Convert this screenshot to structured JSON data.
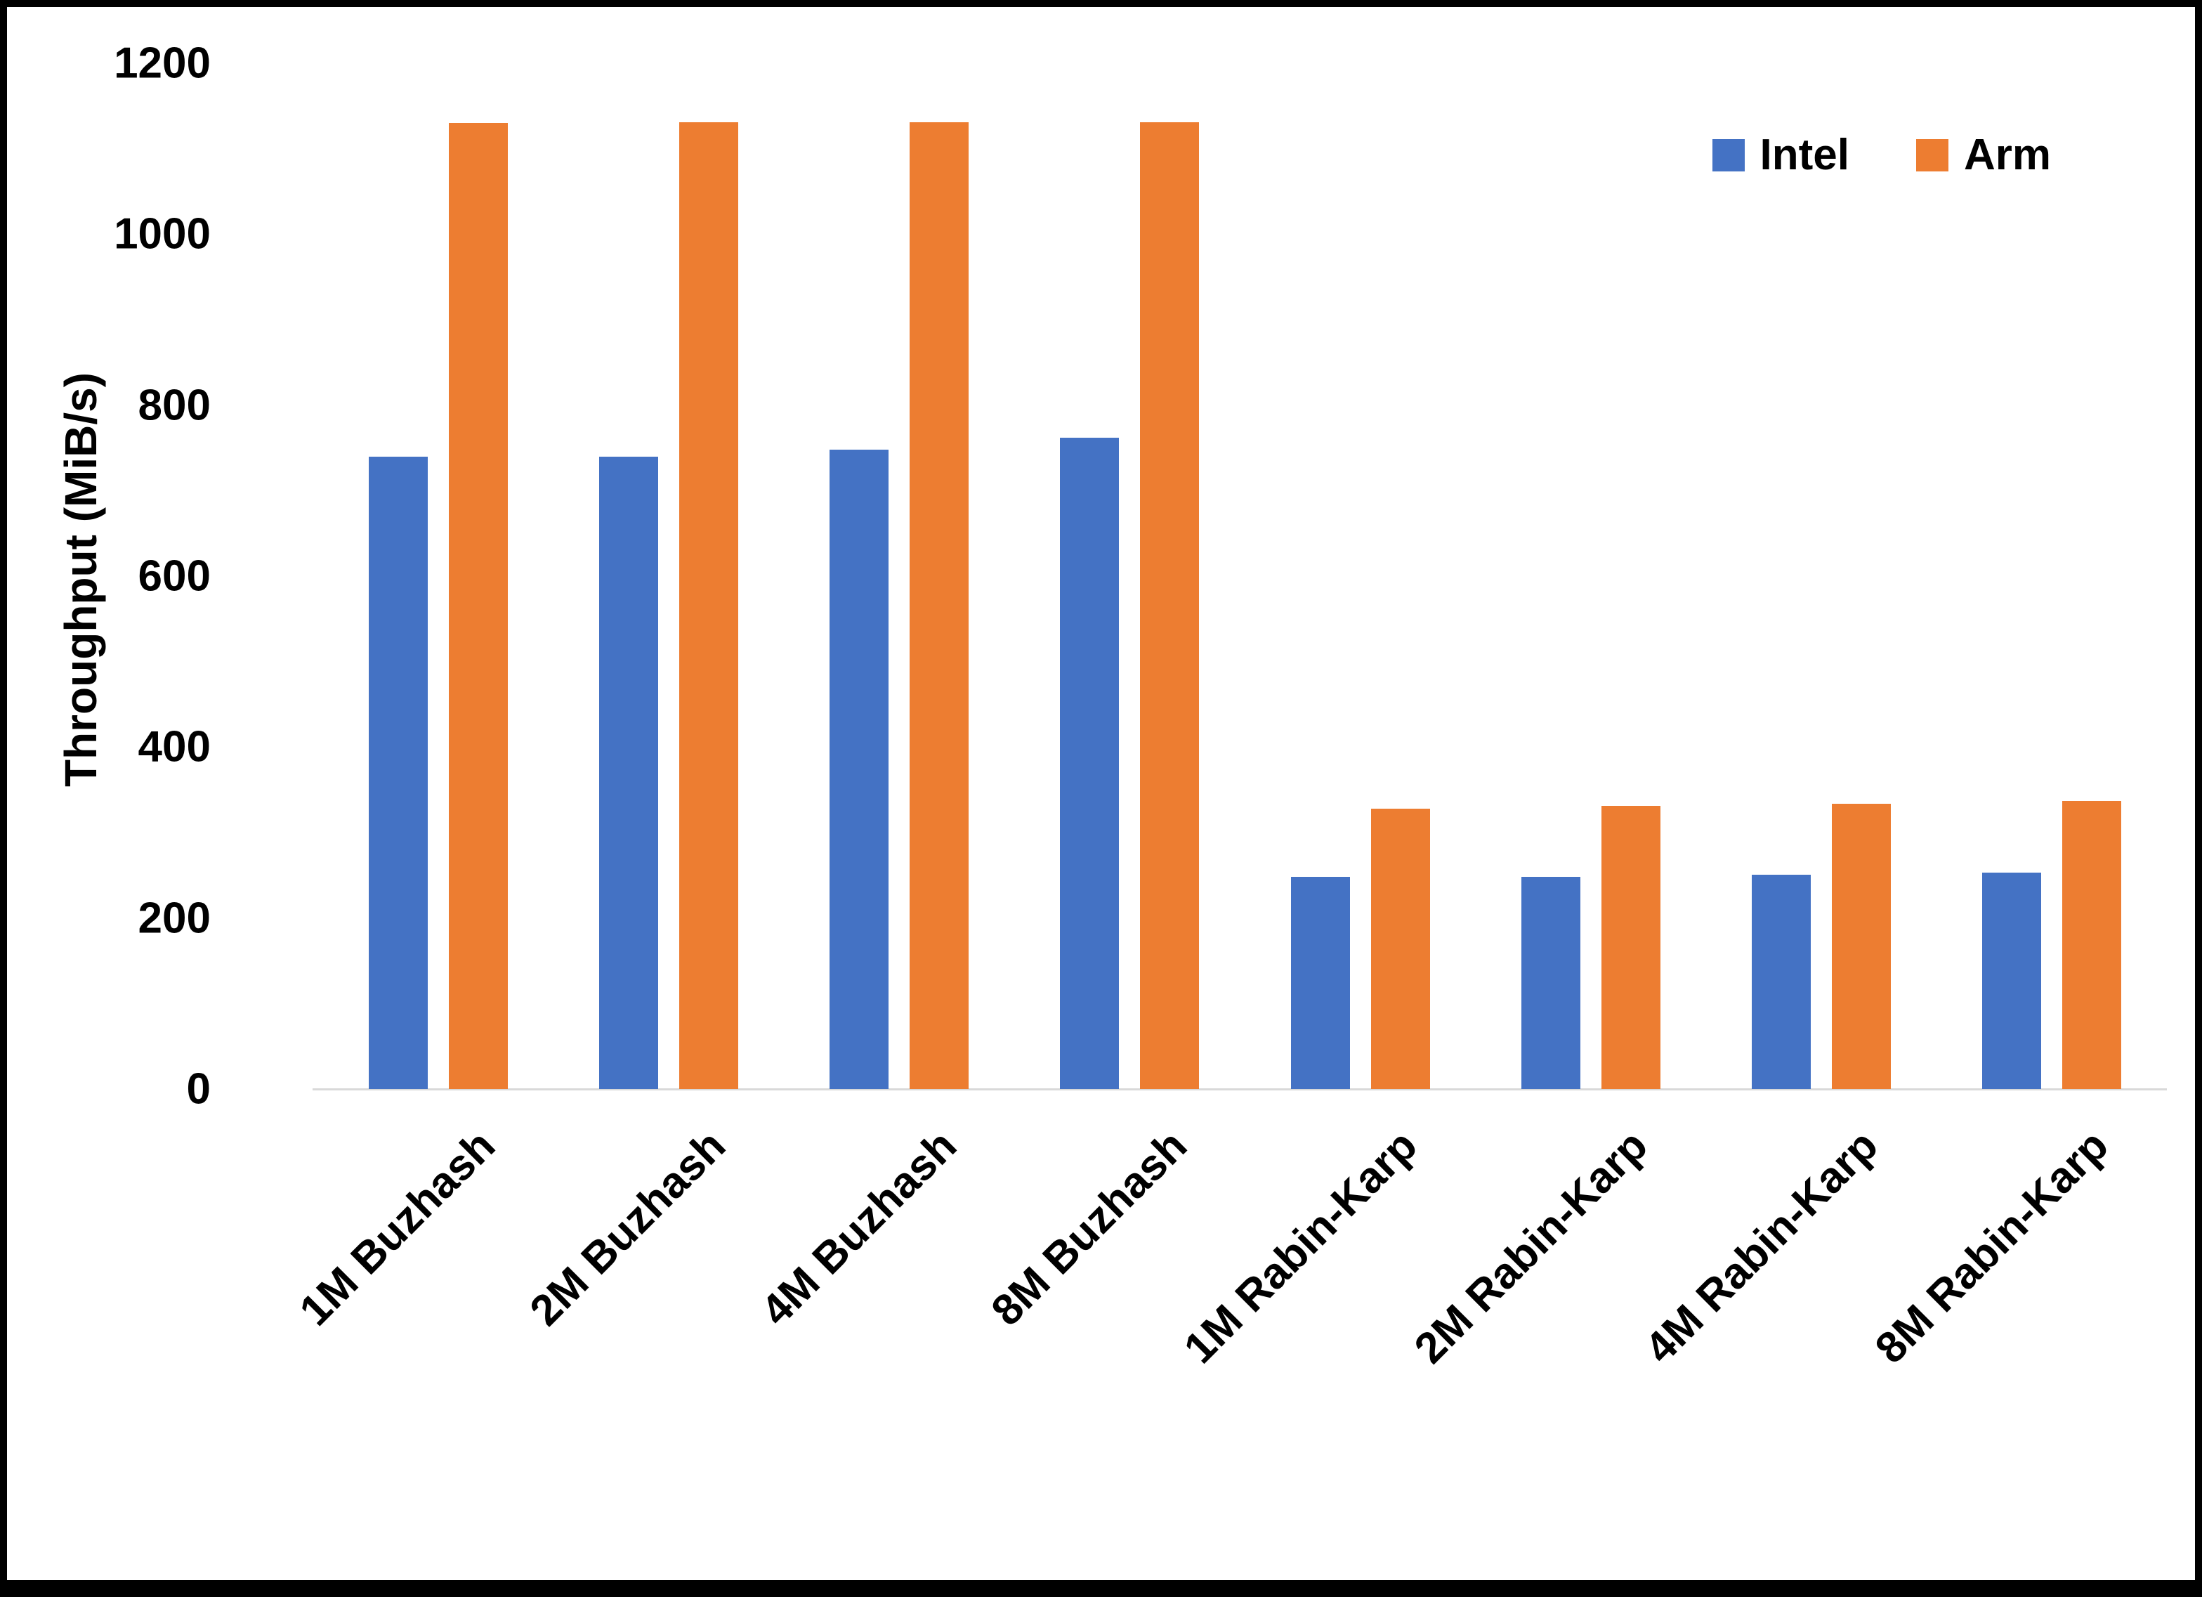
{
  "chart_data": {
    "type": "bar",
    "title": "",
    "xlabel": "",
    "ylabel": "Throughput (MiB/s)",
    "ylim": [
      0,
      1200
    ],
    "yticks": [
      0,
      200,
      400,
      600,
      800,
      1000,
      1200
    ],
    "grid": false,
    "legend_position": "top-right",
    "categories": [
      "1M Buzhash",
      "2M Buzhash",
      "4M Buzhash",
      "8M Buzhash",
      "1M Rabin-Karp",
      "2M Rabin-Karp",
      "4M Rabin-Karp",
      "8M Rabin-Karp"
    ],
    "series": [
      {
        "name": "Intel",
        "color": "#4472c4",
        "values": [
          740,
          740,
          748,
          762,
          248,
          248,
          251,
          253
        ]
      },
      {
        "name": "Arm",
        "color": "#ed7d31",
        "values": [
          1130,
          1131,
          1131,
          1131,
          328,
          331,
          334,
          337
        ]
      }
    ],
    "colors": {
      "axis_line": "#d9d9d9",
      "text": "#000000",
      "background": "#ffffff"
    }
  }
}
